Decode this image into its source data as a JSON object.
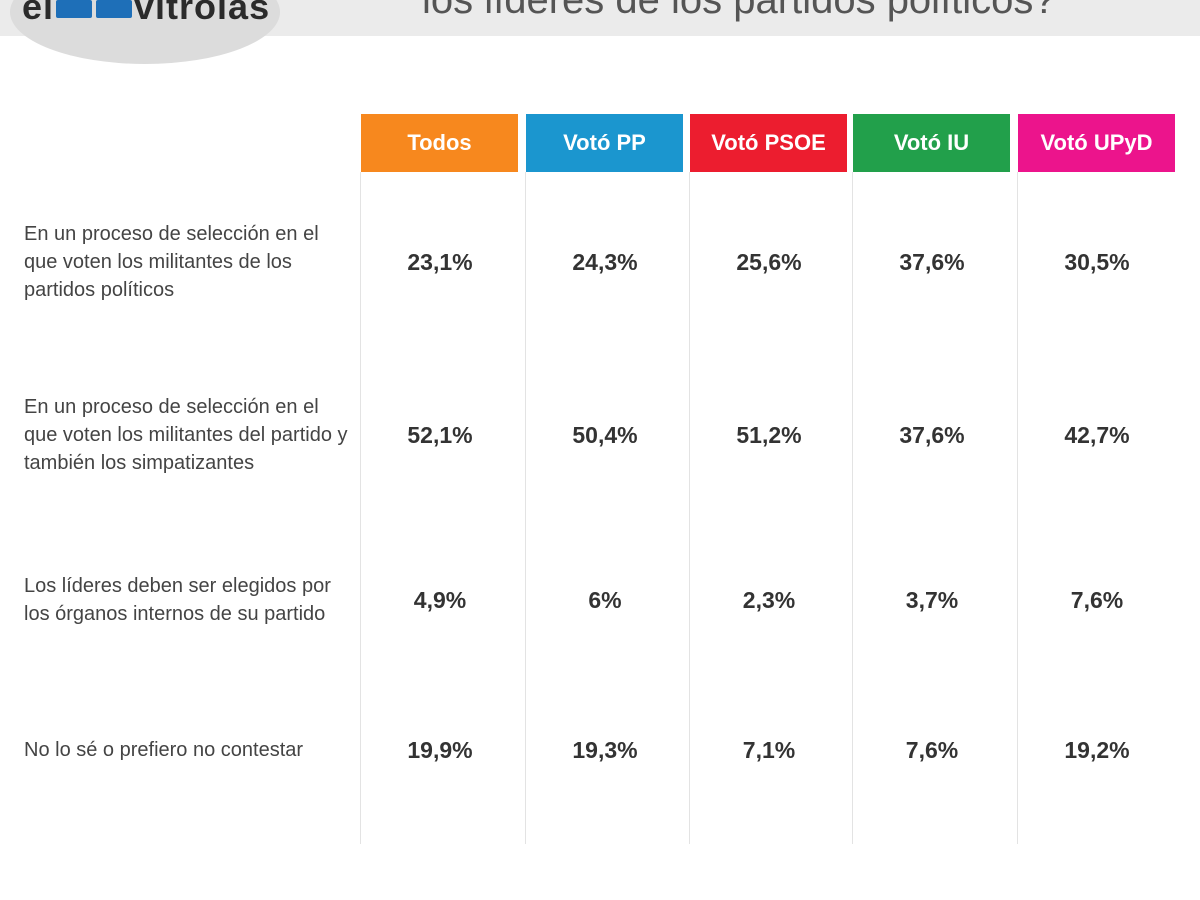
{
  "header": {
    "logo_left": "el",
    "logo_right": "vitrolas",
    "headline": "los líderes de los partidos políticos?"
  },
  "chart_data": {
    "type": "table",
    "columns": [
      {
        "label": "Todos",
        "color": "#f7881e"
      },
      {
        "label": "Votó PP",
        "color": "#1b96cf"
      },
      {
        "label": "Votó PSOE",
        "color": "#ec1d2f"
      },
      {
        "label": "Votó IU",
        "color": "#22a04b"
      },
      {
        "label": "Votó UPyD",
        "color": "#ec148c"
      }
    ],
    "rows": [
      {
        "label": "En un proceso de selección en el que voten los militantes de los partidos políticos",
        "values": [
          "23,1%",
          "24,3%",
          "25,6%",
          "37,6%",
          "30,5%"
        ]
      },
      {
        "label": "En un proceso de selección en el que voten los militantes del partido y también los simpatizantes",
        "values": [
          "52,1%",
          "50,4%",
          "51,2%",
          "37,6%",
          "42,7%"
        ]
      },
      {
        "label": "Los líderes deben ser elegidos por los órganos internos de su partido",
        "values": [
          "4,9%",
          "6%",
          "2,3%",
          "3,7%",
          "7,6%"
        ]
      },
      {
        "label": "No lo sé o prefiero no contestar",
        "values": [
          "19,9%",
          "19,3%",
          "7,1%",
          "7,6%",
          "19,2%"
        ]
      }
    ]
  }
}
